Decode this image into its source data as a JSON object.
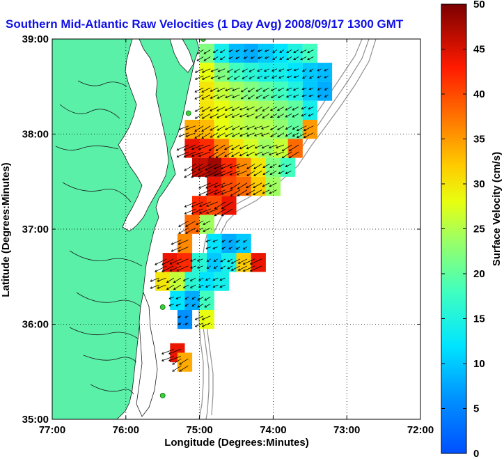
{
  "chart_data": {
    "type": "heatmap",
    "title": "Southern Mid-Atlantic Raw Velocities (1 Day Avg) 2008/09/17 1300 GMT",
    "xlabel": "Longitude (Degrees:Minutes)",
    "ylabel": "Latitude (Degrees:Minutes)",
    "xlim": [
      -77,
      -72
    ],
    "ylim": [
      35,
      39
    ],
    "x_ticks": [
      -77,
      -76,
      -75,
      -74,
      -73,
      -72
    ],
    "y_ticks": [
      35,
      36,
      37,
      38,
      39
    ],
    "x_tick_labels": [
      "77:00",
      "76:00",
      "75:00",
      "74:00",
      "73:00",
      "72:00"
    ],
    "y_tick_labels": [
      "35:00",
      "36:00",
      "37:00",
      "38:00",
      "39:00"
    ],
    "grid": "dotted",
    "colorbar": {
      "label": "Surface Velocity (cm/s)",
      "min": 0,
      "max": 50,
      "ticks": [
        0,
        5,
        10,
        15,
        20,
        25,
        30,
        35,
        40,
        45,
        50
      ],
      "tick_labels": [
        "0",
        "5",
        "10",
        "15",
        "20",
        "25",
        "30",
        "35",
        "40",
        "45",
        "50"
      ],
      "colormap": "jet"
    },
    "cells": [
      {
        "lon": -74.9,
        "lat": 38.85,
        "v": 22
      },
      {
        "lon": -74.7,
        "lat": 38.85,
        "v": 14
      },
      {
        "lon": -74.5,
        "lat": 38.85,
        "v": 9
      },
      {
        "lon": -74.3,
        "lat": 38.85,
        "v": 8
      },
      {
        "lon": -74.1,
        "lat": 38.85,
        "v": 10
      },
      {
        "lon": -73.9,
        "lat": 38.85,
        "v": 12
      },
      {
        "lon": -73.7,
        "lat": 38.85,
        "v": 15
      },
      {
        "lon": -73.5,
        "lat": 38.85,
        "v": 18
      },
      {
        "lon": -74.9,
        "lat": 38.65,
        "v": 28
      },
      {
        "lon": -74.7,
        "lat": 38.65,
        "v": 22
      },
      {
        "lon": -74.5,
        "lat": 38.65,
        "v": 18
      },
      {
        "lon": -74.3,
        "lat": 38.65,
        "v": 16
      },
      {
        "lon": -74.1,
        "lat": 38.65,
        "v": 14
      },
      {
        "lon": -73.9,
        "lat": 38.65,
        "v": 14
      },
      {
        "lon": -73.7,
        "lat": 38.65,
        "v": 12
      },
      {
        "lon": -73.5,
        "lat": 38.65,
        "v": 10
      },
      {
        "lon": -73.3,
        "lat": 38.65,
        "v": 9
      },
      {
        "lon": -74.9,
        "lat": 38.45,
        "v": 30
      },
      {
        "lon": -74.7,
        "lat": 38.45,
        "v": 26
      },
      {
        "lon": -74.5,
        "lat": 38.45,
        "v": 24
      },
      {
        "lon": -74.3,
        "lat": 38.45,
        "v": 22
      },
      {
        "lon": -74.1,
        "lat": 38.45,
        "v": 20
      },
      {
        "lon": -73.9,
        "lat": 38.45,
        "v": 18
      },
      {
        "lon": -73.7,
        "lat": 38.45,
        "v": 15
      },
      {
        "lon": -73.5,
        "lat": 38.45,
        "v": 10
      },
      {
        "lon": -73.3,
        "lat": 38.45,
        "v": 8
      },
      {
        "lon": -74.9,
        "lat": 38.25,
        "v": 30
      },
      {
        "lon": -74.7,
        "lat": 38.25,
        "v": 28
      },
      {
        "lon": -74.5,
        "lat": 38.25,
        "v": 26
      },
      {
        "lon": -74.3,
        "lat": 38.25,
        "v": 25
      },
      {
        "lon": -74.1,
        "lat": 38.25,
        "v": 24
      },
      {
        "lon": -73.9,
        "lat": 38.25,
        "v": 22
      },
      {
        "lon": -73.7,
        "lat": 38.25,
        "v": 20
      },
      {
        "lon": -73.5,
        "lat": 38.25,
        "v": 14
      },
      {
        "lon": -75.1,
        "lat": 38.05,
        "v": 34
      },
      {
        "lon": -74.9,
        "lat": 38.05,
        "v": 33
      },
      {
        "lon": -74.7,
        "lat": 38.05,
        "v": 28
      },
      {
        "lon": -74.5,
        "lat": 38.05,
        "v": 26
      },
      {
        "lon": -74.3,
        "lat": 38.05,
        "v": 25
      },
      {
        "lon": -74.1,
        "lat": 38.05,
        "v": 25
      },
      {
        "lon": -73.9,
        "lat": 38.05,
        "v": 23
      },
      {
        "lon": -73.7,
        "lat": 38.05,
        "v": 20
      },
      {
        "lon": -73.5,
        "lat": 38.05,
        "v": 35
      },
      {
        "lon": -75.1,
        "lat": 37.85,
        "v": 44
      },
      {
        "lon": -74.9,
        "lat": 37.85,
        "v": 42
      },
      {
        "lon": -74.7,
        "lat": 37.85,
        "v": 36
      },
      {
        "lon": -74.5,
        "lat": 37.85,
        "v": 30
      },
      {
        "lon": -74.3,
        "lat": 37.85,
        "v": 27
      },
      {
        "lon": -74.1,
        "lat": 37.85,
        "v": 24
      },
      {
        "lon": -73.9,
        "lat": 37.85,
        "v": 26
      },
      {
        "lon": -73.7,
        "lat": 37.85,
        "v": 38
      },
      {
        "lon": -75.0,
        "lat": 37.65,
        "v": 46
      },
      {
        "lon": -74.8,
        "lat": 37.65,
        "v": 48
      },
      {
        "lon": -74.6,
        "lat": 37.65,
        "v": 42
      },
      {
        "lon": -74.4,
        "lat": 37.65,
        "v": 36
      },
      {
        "lon": -74.2,
        "lat": 37.65,
        "v": 30
      },
      {
        "lon": -74.0,
        "lat": 37.65,
        "v": 22
      },
      {
        "lon": -73.8,
        "lat": 37.65,
        "v": 18
      },
      {
        "lon": -74.8,
        "lat": 37.45,
        "v": 44
      },
      {
        "lon": -74.6,
        "lat": 37.45,
        "v": 40
      },
      {
        "lon": -74.4,
        "lat": 37.45,
        "v": 38
      },
      {
        "lon": -74.2,
        "lat": 37.45,
        "v": 32
      },
      {
        "lon": -74.0,
        "lat": 37.45,
        "v": 24
      },
      {
        "lon": -75.0,
        "lat": 37.25,
        "v": 42
      },
      {
        "lon": -74.8,
        "lat": 37.25,
        "v": 40
      },
      {
        "lon": -74.6,
        "lat": 37.25,
        "v": 44
      },
      {
        "lon": -75.1,
        "lat": 37.05,
        "v": 38
      },
      {
        "lon": -74.9,
        "lat": 37.05,
        "v": 24
      },
      {
        "lon": -75.2,
        "lat": 36.85,
        "v": 36
      },
      {
        "lon": -74.8,
        "lat": 36.85,
        "v": 12
      },
      {
        "lon": -74.6,
        "lat": 36.85,
        "v": 8
      },
      {
        "lon": -74.4,
        "lat": 36.85,
        "v": 10
      },
      {
        "lon": -75.4,
        "lat": 36.65,
        "v": 44
      },
      {
        "lon": -75.2,
        "lat": 36.65,
        "v": 42
      },
      {
        "lon": -75.0,
        "lat": 36.65,
        "v": 16
      },
      {
        "lon": -74.8,
        "lat": 36.65,
        "v": 10
      },
      {
        "lon": -74.6,
        "lat": 36.65,
        "v": 14
      },
      {
        "lon": -74.4,
        "lat": 36.65,
        "v": 32
      },
      {
        "lon": -74.2,
        "lat": 36.65,
        "v": 44
      },
      {
        "lon": -75.5,
        "lat": 36.45,
        "v": 30
      },
      {
        "lon": -75.3,
        "lat": 36.45,
        "v": 26
      },
      {
        "lon": -75.1,
        "lat": 36.45,
        "v": 16
      },
      {
        "lon": -74.9,
        "lat": 36.45,
        "v": 12
      },
      {
        "lon": -74.7,
        "lat": 36.45,
        "v": 14
      },
      {
        "lon": -75.3,
        "lat": 36.25,
        "v": 12
      },
      {
        "lon": -75.1,
        "lat": 36.25,
        "v": 8
      },
      {
        "lon": -74.9,
        "lat": 36.25,
        "v": 18
      },
      {
        "lon": -75.2,
        "lat": 36.05,
        "v": 6
      },
      {
        "lon": -74.9,
        "lat": 36.05,
        "v": 28
      },
      {
        "lon": -75.3,
        "lat": 35.7,
        "v": 44
      },
      {
        "lon": -75.2,
        "lat": 35.6,
        "v": 34
      }
    ],
    "stations": [
      {
        "lon": -74.95,
        "lat": 39.0
      },
      {
        "lon": -75.15,
        "lat": 38.22
      },
      {
        "lon": -75.5,
        "lat": 36.18
      },
      {
        "lon": -75.5,
        "lat": 35.25
      }
    ]
  }
}
